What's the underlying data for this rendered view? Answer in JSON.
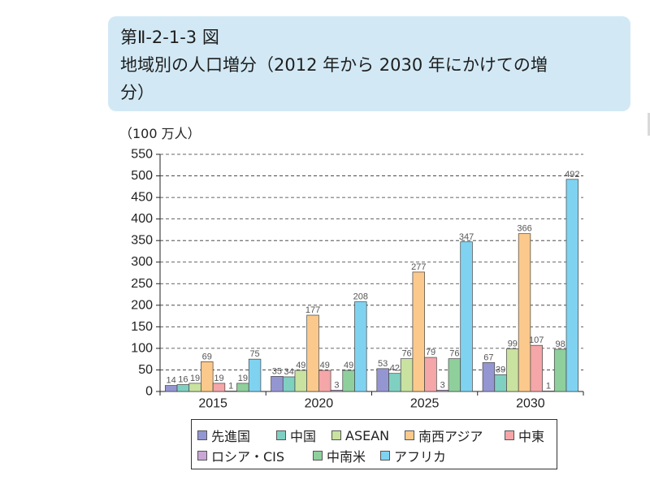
{
  "figure_label": "第Ⅱ-2-1-3 図",
  "colors": {
    "title_box": "#d2e9f5"
  },
  "chart_data": {
    "type": "bar",
    "title": [
      "地域別の人口増分（2012 年から 2030 年にかけての増",
      "分）"
    ],
    "ylabel": "（100 万人）",
    "categories": [
      "2015",
      "2020",
      "2025",
      "2030"
    ],
    "ylim": [
      0,
      550
    ],
    "yticks": [
      0,
      50,
      100,
      150,
      200,
      250,
      300,
      350,
      400,
      450,
      500,
      550
    ],
    "grid": true,
    "legend": "bottom",
    "series": [
      {
        "name": "先進国",
        "color": "#9496d2",
        "values": [
          14,
          35,
          53,
          67
        ]
      },
      {
        "name": "中国",
        "color": "#80d0c2",
        "values": [
          16,
          34,
          42,
          39
        ]
      },
      {
        "name": "ASEAN",
        "color": "#c9e2a0",
        "values": [
          19,
          49,
          76,
          99
        ]
      },
      {
        "name": "南西アジア",
        "color": "#fbc98c",
        "values": [
          69,
          177,
          277,
          366
        ]
      },
      {
        "name": "中東",
        "color": "#f4a6a8",
        "values": [
          19,
          49,
          79,
          107
        ]
      },
      {
        "name": "ロシア・CIS",
        "color": "#c8a6d6",
        "values": [
          1,
          3,
          3,
          1
        ]
      },
      {
        "name": "中南米",
        "color": "#8fcf9c",
        "values": [
          19,
          49,
          76,
          98
        ]
      },
      {
        "name": "アフリカ",
        "color": "#7fd3f1",
        "values": [
          75,
          208,
          347,
          492
        ]
      }
    ]
  }
}
